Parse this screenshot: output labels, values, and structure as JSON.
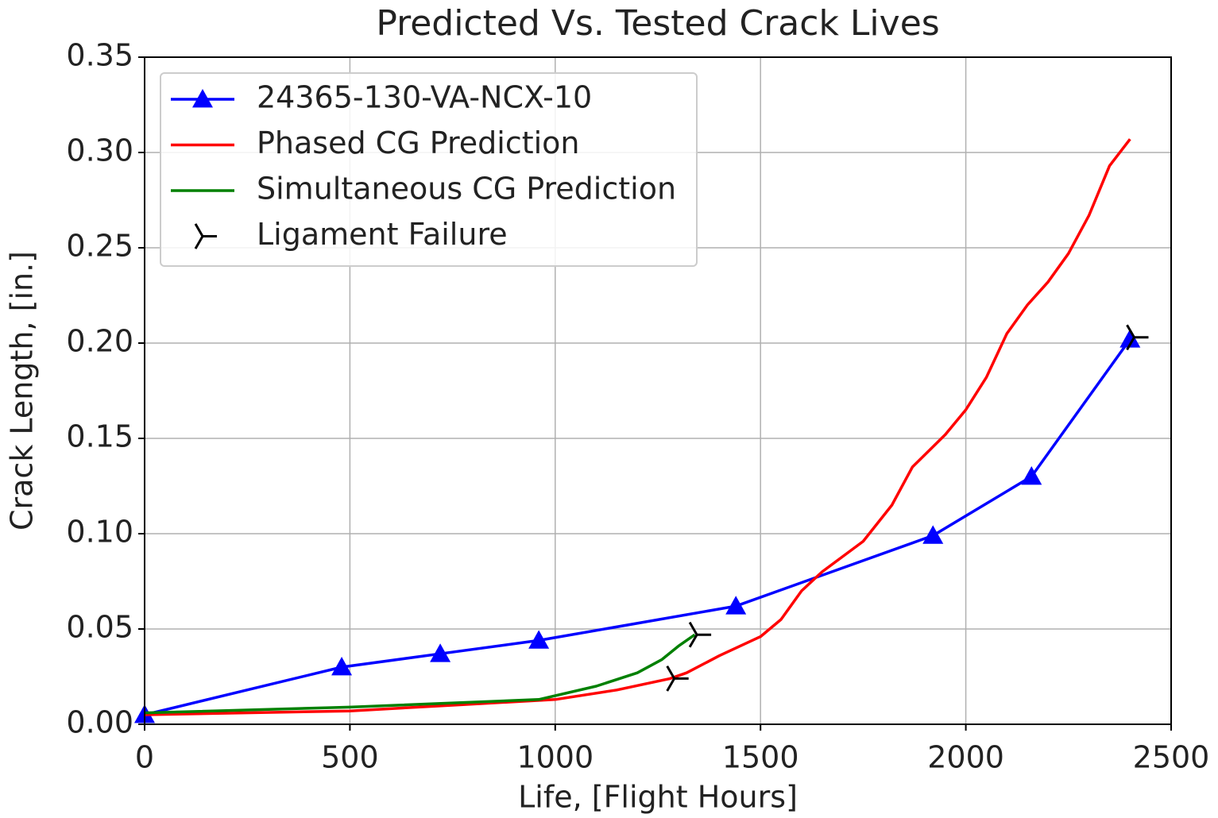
{
  "chart_data": {
    "type": "line",
    "title": "Predicted Vs. Tested Crack Lives",
    "x_label": "Life, [Flight Hours]",
    "y_label": "Crack Length, [in.]",
    "xlim": [
      0,
      2500
    ],
    "ylim": [
      0,
      0.35
    ],
    "xticks": [
      0,
      500,
      1000,
      1500,
      2000,
      2500
    ],
    "yticks": [
      {
        "value": 0,
        "label": "0.00"
      },
      0.05,
      {
        "value": 0.1,
        "label": "0.10"
      },
      0.15,
      {
        "value": 0.2,
        "label": "0.20"
      },
      0.25,
      {
        "value": 0.3,
        "label": "0.30"
      },
      0.35
    ],
    "grid": true,
    "legend": "upper left",
    "series": [
      {
        "name": "24365-130-VA-NCX-10",
        "color": "#0000ff",
        "marker": "triangle",
        "line": true,
        "x": [
          0,
          480,
          720,
          960,
          1440,
          1920,
          2160,
          2400
        ],
        "values": [
          0.005,
          0.03,
          0.037,
          0.044,
          0.062,
          0.099,
          0.13,
          0.202
        ]
      },
      {
        "name": "Phased CG Prediction",
        "color": "#ff0000",
        "marker": "none",
        "line": true,
        "x": [
          0,
          500,
          1000,
          1150,
          1280,
          1320,
          1400,
          1500,
          1550,
          1600,
          1650,
          1750,
          1820,
          1870,
          1950,
          2000,
          2050,
          2100,
          2150,
          2200,
          2250,
          2300,
          2350,
          2400
        ],
        "values": [
          0.005,
          0.007,
          0.013,
          0.018,
          0.024,
          0.027,
          0.036,
          0.046,
          0.055,
          0.07,
          0.08,
          0.096,
          0.115,
          0.135,
          0.152,
          0.165,
          0.182,
          0.205,
          0.22,
          0.232,
          0.247,
          0.267,
          0.293,
          0.307
        ]
      },
      {
        "name": "Simultaneous CG Prediction",
        "color": "#008000",
        "marker": "none",
        "line": true,
        "x": [
          0,
          500,
          960,
          1100,
          1200,
          1260,
          1300,
          1340
        ],
        "values": [
          0.006,
          0.009,
          0.013,
          0.02,
          0.027,
          0.034,
          0.041,
          0.047
        ]
      },
      {
        "name": "Ligament Failure",
        "color": "#000000",
        "marker": "tri",
        "line": false,
        "x": [
          1290,
          1345,
          2410
        ],
        "values": [
          0.024,
          0.047,
          0.203
        ]
      }
    ]
  }
}
